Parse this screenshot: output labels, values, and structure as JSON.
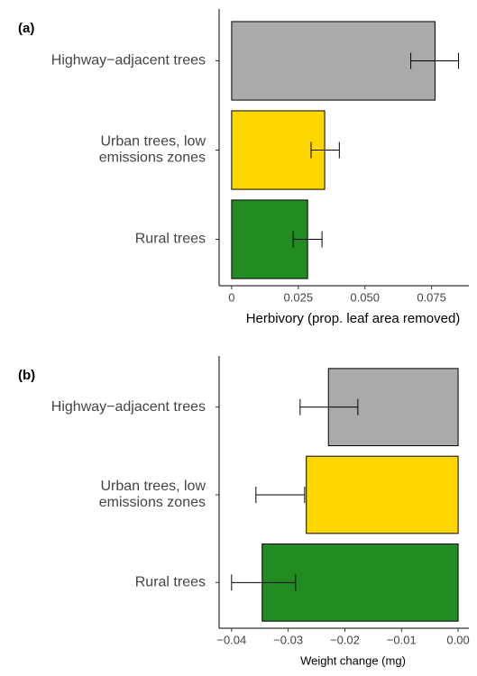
{
  "chart_data": [
    {
      "type": "bar",
      "panel": "(a)",
      "xlabel": "Herbivory (prop. leaf area removed)",
      "categories": [
        "Highway−adjacent trees",
        "Urban trees, low\nemissions zones",
        "Rural trees"
      ],
      "values": [
        0.0763,
        0.0349,
        0.0285
      ],
      "ci_low": [
        0.0672,
        0.0298,
        0.0231
      ],
      "ci_high": [
        0.0851,
        0.0404,
        0.0339
      ],
      "colors": [
        "#aaaaaa",
        "#ffd700",
        "#228b22"
      ],
      "xlim": [
        -0.0047,
        0.089
      ],
      "xticks": [
        {
          "value": 0,
          "label": "0"
        },
        0.025,
        {
          "value": 0.05,
          "label": "0.050"
        },
        0.075
      ]
    },
    {
      "type": "bar",
      "panel": "(b)",
      "xlabel": "Weight change (mg)",
      "categories": [
        "Highway−adjacent trees",
        "Urban trees, low\nemissions zones",
        "Rural trees"
      ],
      "values": [
        -0.0229,
        -0.0268,
        -0.0346
      ],
      "ci_low": [
        -0.0279,
        -0.0357,
        -0.04
      ],
      "ci_high": [
        -0.0177,
        -0.0271,
        -0.0287
      ],
      "colors": [
        "#aaaaaa",
        "#ffd700",
        "#228b22"
      ],
      "xlim": [
        -0.0422,
        0.0019
      ],
      "xticks": [
        {
          "value": -0.04,
          "label": "−0.04"
        },
        {
          "value": -0.03,
          "label": "−0.03"
        },
        {
          "value": -0.02,
          "label": "−0.02"
        },
        {
          "value": -0.01,
          "label": "−0.01"
        },
        {
          "value": 0,
          "label": "0.00"
        }
      ]
    }
  ]
}
